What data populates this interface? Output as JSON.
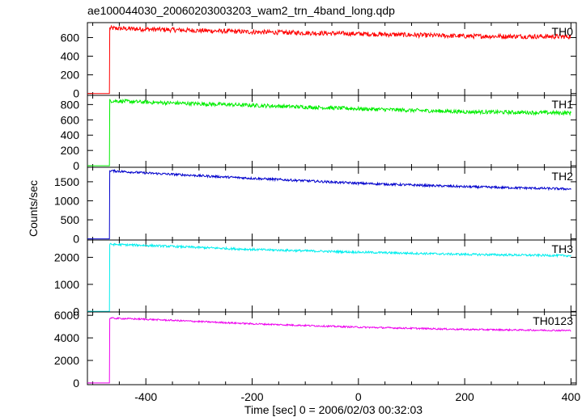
{
  "title": "ae100044030_20060203003203_wam2_trn_4band_long.qdp",
  "x_axis_label": "Time [sec] 0 = 2006/02/03 00:32:03",
  "y_axis_label": "Counts/sec",
  "chart_data": {
    "type": "line",
    "title": "ae100044030_20060203003203_wam2_trn_4band_long.qdp",
    "xlabel": "Time [sec] 0 = 2006/02/03 00:32:03",
    "ylabel": "Counts/sec",
    "xlim": [
      -510,
      410
    ],
    "x_ticks": [
      -400,
      -200,
      0,
      200,
      400
    ],
    "grid": false,
    "onset_time": -468,
    "x_range_data": [
      -510,
      400
    ],
    "panels": [
      {
        "name": "TH0",
        "color": "#ff0000",
        "ylim": [
          -20,
          760
        ],
        "y_ticks": [
          0,
          200,
          400,
          600
        ],
        "pre_level": 0,
        "curve": [
          [
            -468,
            700
          ],
          [
            -400,
            690
          ],
          [
            -200,
            660
          ],
          [
            0,
            640
          ],
          [
            200,
            615
          ],
          [
            400,
            610
          ]
        ],
        "noise": 25
      },
      {
        "name": "TH1",
        "color": "#00ee00",
        "ylim": [
          -20,
          920
        ],
        "y_ticks": [
          0,
          200,
          400,
          600,
          800
        ],
        "pre_level": 0,
        "curve": [
          [
            -468,
            850
          ],
          [
            -400,
            830
          ],
          [
            -200,
            790
          ],
          [
            0,
            745
          ],
          [
            200,
            705
          ],
          [
            400,
            690
          ]
        ],
        "noise": 25
      },
      {
        "name": "TH2",
        "color": "#0000cc",
        "ylim": [
          -30,
          1880
        ],
        "y_ticks": [
          0,
          500,
          1000,
          1500
        ],
        "pre_level": 0,
        "curve": [
          [
            -468,
            1790
          ],
          [
            -400,
            1730
          ],
          [
            -200,
            1590
          ],
          [
            0,
            1460
          ],
          [
            200,
            1370
          ],
          [
            400,
            1310
          ]
        ],
        "noise": 30
      },
      {
        "name": "TH3",
        "color": "#00eeee",
        "ylim": [
          -20,
          2640
        ],
        "y_ticks": [
          0,
          1000,
          2000
        ],
        "pre_level": 0,
        "curve": [
          [
            -468,
            2480
          ],
          [
            -400,
            2440
          ],
          [
            -200,
            2290
          ],
          [
            0,
            2190
          ],
          [
            200,
            2110
          ],
          [
            400,
            2060
          ]
        ],
        "noise": 40
      },
      {
        "name": "TH0123",
        "color": "#ee00ee",
        "ylim": [
          -150,
          6300
        ],
        "y_ticks": [
          0,
          2000,
          4000,
          6000
        ],
        "pre_level": 0,
        "curve": [
          [
            -468,
            5750
          ],
          [
            -400,
            5650
          ],
          [
            -200,
            5250
          ],
          [
            0,
            4950
          ],
          [
            200,
            4750
          ],
          [
            400,
            4650
          ]
        ],
        "noise": 70
      }
    ]
  }
}
